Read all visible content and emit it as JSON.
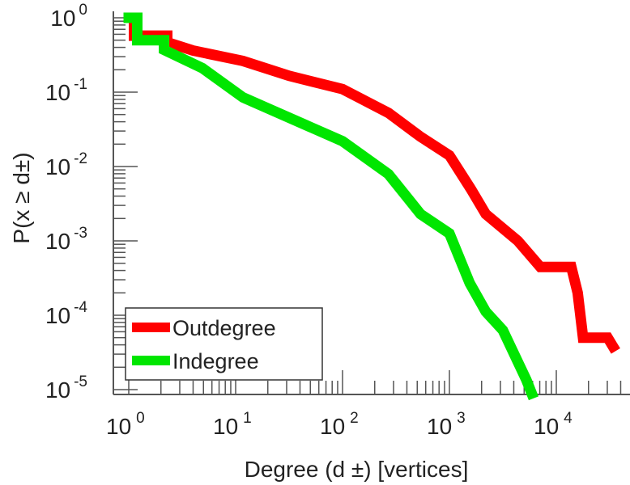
{
  "chart_data": {
    "type": "line",
    "scale": "log-log",
    "title": "",
    "xlabel": "Degree (d ±) [vertices]",
    "ylabel": "P(x ≥ d±)",
    "xlim": [
      1,
      46000
    ],
    "ylim": [
      8.9e-06,
      1.1
    ],
    "x_tick_labels": [
      {
        "base": "10",
        "exp": "0",
        "value": 1
      },
      {
        "base": "10",
        "exp": "1",
        "value": 10
      },
      {
        "base": "10",
        "exp": "2",
        "value": 100
      },
      {
        "base": "10",
        "exp": "3",
        "value": 1000
      },
      {
        "base": "10",
        "exp": "4",
        "value": 10000
      }
    ],
    "y_tick_labels": [
      {
        "base": "10",
        "exp": "0",
        "value": 1
      },
      {
        "base": "10",
        "exp": "-1",
        "value": 0.1
      },
      {
        "base": "10",
        "exp": "-2",
        "value": 0.01
      },
      {
        "base": "10",
        "exp": "-3",
        "value": 0.001
      },
      {
        "base": "10",
        "exp": "-4",
        "value": 0.0001
      },
      {
        "base": "10",
        "exp": "-5",
        "value": 1e-05
      }
    ],
    "legend_position": "bottom-left",
    "series": [
      {
        "name": "Outdegree",
        "color": "#ff0000",
        "x": [
          1,
          1.12,
          1.12,
          2.29,
          2.29,
          3.98,
          11.7,
          31.6,
          100,
          269,
          537,
          1000,
          1585,
          2188,
          4365,
          7079,
          13800,
          15850,
          17780,
          30200,
          33900
        ],
        "y": [
          1,
          1,
          0.575,
          0.575,
          0.468,
          0.363,
          0.263,
          0.166,
          0.11,
          0.0525,
          0.0251,
          0.0141,
          0.005,
          0.00229,
          0.001,
          0.000447,
          0.000447,
          0.0002,
          5e-05,
          5e-05,
          3.8e-05
        ]
      },
      {
        "name": "Indegree",
        "color": "#00e600",
        "x": [
          1,
          1.2,
          1.2,
          2.14,
          2.14,
          4.9,
          11.7,
          100,
          269,
          537,
          1000,
          1549,
          2188,
          3162,
          5248,
          5888
        ],
        "y": [
          1,
          1,
          0.5,
          0.5,
          0.37,
          0.21,
          0.085,
          0.0219,
          0.0079,
          0.00229,
          0.00126,
          0.00027,
          0.000112,
          6.3e-05,
          1.35e-05,
          8.9e-06
        ]
      }
    ]
  }
}
